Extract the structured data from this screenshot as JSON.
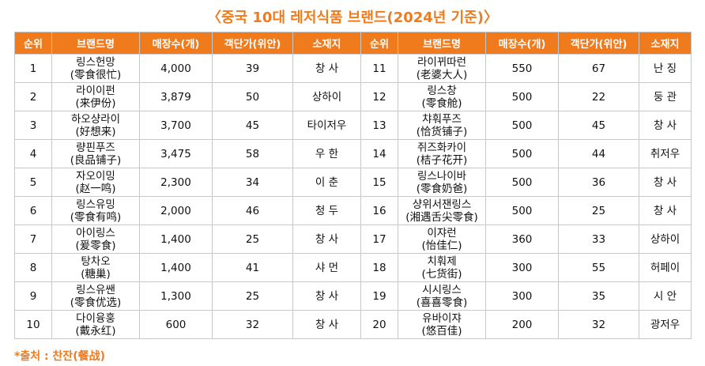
{
  "title": "〈중국 10대 레저식품 브랜드(2024년 기준)〉",
  "headers": [
    "순위",
    "브랜드명",
    "매장수(개)",
    "객단가(위안)",
    "소재지",
    "순위",
    "브랜드명",
    "매장수(개)",
    "객단가(위안)",
    "소재지"
  ],
  "rows": [
    [
      {
        "rank": "1",
        "name_ko": "링스헌망",
        "name_zh": "(零食很忙)",
        "stores": "4,000",
        "price": "39",
        "location": "창 사"
      },
      {
        "rank": "11",
        "name_ko": "라이뀌따런",
        "name_zh": "(老婆大人)",
        "stores": "550",
        "price": "67",
        "location": "난 징"
      }
    ],
    [
      {
        "rank": "2",
        "name_ko": "라이이펀",
        "name_zh": "(来伊份)",
        "stores": "3,879",
        "price": "50",
        "location": "상하이"
      },
      {
        "rank": "12",
        "name_ko": "링스창",
        "name_zh": "(零食舱)",
        "stores": "500",
        "price": "22",
        "location": "둥 관"
      }
    ],
    [
      {
        "rank": "3",
        "name_ko": "하오샹라이",
        "name_zh": "(好想来)",
        "stores": "3,700",
        "price": "45",
        "location": "타이저우"
      },
      {
        "rank": "13",
        "name_ko": "챠훠푸즈",
        "name_zh": "(恰货铺子)",
        "stores": "500",
        "price": "45",
        "location": "창 사"
      }
    ],
    [
      {
        "rank": "4",
        "name_ko": "량핀푸즈",
        "name_zh": "(良品铺子)",
        "stores": "3,475",
        "price": "58",
        "location": "우 한"
      },
      {
        "rank": "14",
        "name_ko": "쥐즈화카이",
        "name_zh": "(桔子花开)",
        "stores": "500",
        "price": "44",
        "location": "취저우"
      }
    ],
    [
      {
        "rank": "5",
        "name_ko": "자오이밍",
        "name_zh": "(赵一鸣)",
        "stores": "2,300",
        "price": "34",
        "location": "이 춘"
      },
      {
        "rank": "15",
        "name_ko": "링스나이바",
        "name_zh": "(零食奶爸)",
        "stores": "500",
        "price": "36",
        "location": "창 사"
      }
    ],
    [
      {
        "rank": "6",
        "name_ko": "링스유밍",
        "name_zh": "(零食有鸣)",
        "stores": "2,000",
        "price": "46",
        "location": "청 두"
      },
      {
        "rank": "16",
        "name_ko": "샹위서잰링스",
        "name_zh": "(湘遇舌尖零食)",
        "stores": "500",
        "price": "25",
        "location": "창 사"
      }
    ],
    [
      {
        "rank": "7",
        "name_ko": "아이링스",
        "name_zh": "(爰零食)",
        "stores": "1,400",
        "price": "25",
        "location": "창 사"
      },
      {
        "rank": "17",
        "name_ko": "이쟈런",
        "name_zh": "(怡佳仁)",
        "stores": "360",
        "price": "33",
        "location": "상하이"
      }
    ],
    [
      {
        "rank": "8",
        "name_ko": "탕차오",
        "name_zh": "(糖巢)",
        "stores": "1,400",
        "price": "41",
        "location": "샤 먼"
      },
      {
        "rank": "18",
        "name_ko": "치훠제",
        "name_zh": "(七货街)",
        "stores": "300",
        "price": "55",
        "location": "허페이"
      }
    ],
    [
      {
        "rank": "9",
        "name_ko": "링스유쌘",
        "name_zh": "(零食优选)",
        "stores": "1,300",
        "price": "25",
        "location": "창 사"
      },
      {
        "rank": "19",
        "name_ko": "시시링스",
        "name_zh": "(喜喜零食)",
        "stores": "300",
        "price": "35",
        "location": "시 안"
      }
    ],
    [
      {
        "rank": "10",
        "name_ko": "다이융훙",
        "name_zh": "(戴永红)",
        "stores": "600",
        "price": "32",
        "location": "창 사"
      },
      {
        "rank": "20",
        "name_ko": "유바이쟈",
        "name_zh": "(悠百佳)",
        "stores": "200",
        "price": "32",
        "location": "광저우"
      }
    ]
  ],
  "footnote": "*출처 : 찬잔(餐战)",
  "colors": {
    "accent": "#f07b1d",
    "border": "#c8c8c8"
  }
}
